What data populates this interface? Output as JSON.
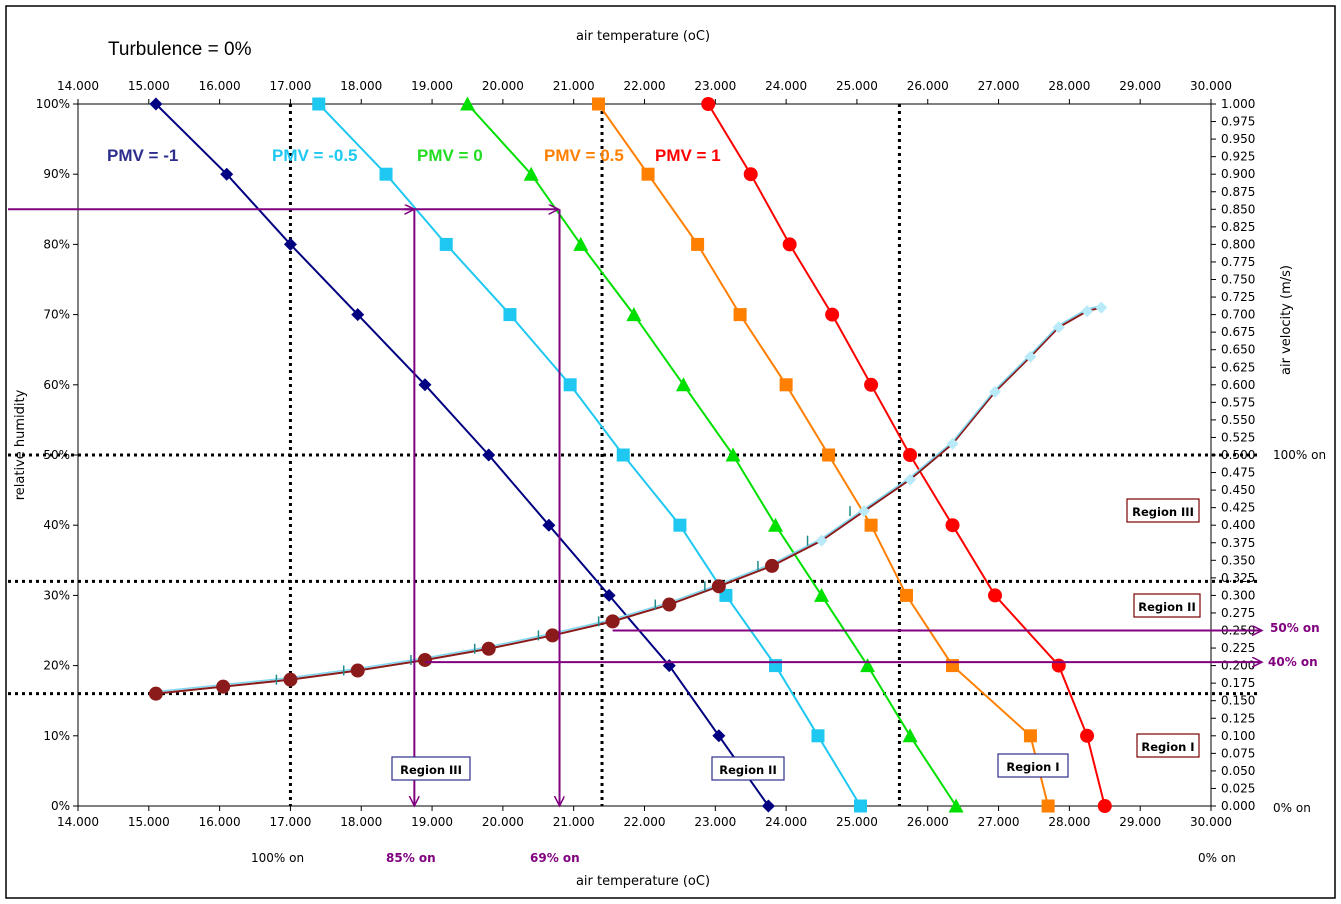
{
  "chart_data": {
    "type": "line",
    "title": "Turbulence = 0%",
    "x_top_label": "air temperature (oC)",
    "x_bottom_label": "air temperature (oC)",
    "y_left_label": "relative humidity",
    "y_right_label": "air velocity (m/s)",
    "xlim": [
      14,
      30
    ],
    "x_ticks": [
      "14.000",
      "15.000",
      "16.000",
      "17.000",
      "18.000",
      "19.000",
      "20.000",
      "21.000",
      "22.000",
      "23.000",
      "24.000",
      "25.000",
      "26.000",
      "27.000",
      "28.000",
      "29.000",
      "30.000"
    ],
    "y_left_ticks": [
      "0%",
      "10%",
      "20%",
      "30%",
      "40%",
      "50%",
      "60%",
      "70%",
      "80%",
      "90%",
      "100%"
    ],
    "y_right_ticks": [
      "0.000",
      "0.025",
      "0.050",
      "0.075",
      "0.100",
      "0.125",
      "0.150",
      "0.175",
      "0.200",
      "0.225",
      "0.250",
      "0.275",
      "0.300",
      "0.325",
      "0.350",
      "0.375",
      "0.400",
      "0.425",
      "0.450",
      "0.475",
      "0.500",
      "0.525",
      "0.550",
      "0.575",
      "0.600",
      "0.625",
      "0.650",
      "0.675",
      "0.700",
      "0.725",
      "0.750",
      "0.775",
      "0.800",
      "0.825",
      "0.850",
      "0.875",
      "0.900",
      "0.925",
      "0.950",
      "0.975",
      "1.000"
    ],
    "pmv_series": [
      {
        "name": "PMV = -1",
        "color": "#000080",
        "marker": "diamond",
        "x": [
          23.75,
          23.05,
          22.35,
          21.5,
          20.65,
          19.8,
          18.9,
          17.95,
          17.0,
          16.1,
          15.1
        ],
        "y": [
          0,
          10,
          20,
          30,
          40,
          50,
          60,
          70,
          80,
          90,
          100
        ]
      },
      {
        "name": "PMV = -0.5",
        "color": "#1EC8F0",
        "marker": "square",
        "x": [
          25.05,
          24.45,
          23.85,
          23.15,
          22.5,
          21.7,
          20.95,
          20.1,
          19.2,
          18.35,
          17.4
        ],
        "y": [
          0,
          10,
          20,
          30,
          40,
          50,
          60,
          70,
          80,
          90,
          100
        ]
      },
      {
        "name": "PMV = 0",
        "color": "#00E000",
        "marker": "triangle",
        "x": [
          26.4,
          25.75,
          25.15,
          24.5,
          23.85,
          23.25,
          22.55,
          21.85,
          21.1,
          20.4,
          19.5
        ],
        "y": [
          0,
          10,
          20,
          30,
          40,
          50,
          60,
          70,
          80,
          90,
          100
        ]
      },
      {
        "name": "PMV = 0.5",
        "color": "#FF7F00",
        "marker": "square",
        "x": [
          27.7,
          27.45,
          26.35,
          25.7,
          25.2,
          24.6,
          24.0,
          23.35,
          22.75,
          22.05,
          21.35
        ],
        "y": [
          0,
          10,
          20,
          30,
          40,
          50,
          60,
          70,
          80,
          90,
          100
        ]
      },
      {
        "name": "PMV = 1",
        "color": "#FF0000",
        "marker": "circle",
        "x": [
          28.5,
          28.25,
          27.85,
          26.95,
          26.35,
          25.75,
          25.2,
          24.65,
          24.05,
          23.5,
          22.9
        ],
        "y": [
          0,
          10,
          20,
          30,
          40,
          50,
          60,
          70,
          80,
          90,
          100
        ]
      }
    ],
    "velocity_curve": {
      "x": [
        15.1,
        16.05,
        17.0,
        17.95,
        18.9,
        19.8,
        20.7,
        21.55,
        22.35,
        23.05,
        23.8,
        24.5,
        25.1,
        25.75,
        26.35,
        26.95,
        27.45,
        27.85,
        28.25,
        28.45
      ],
      "y": [
        0.16,
        0.17,
        0.18,
        0.193,
        0.208,
        0.224,
        0.243,
        0.263,
        0.287,
        0.313,
        0.342,
        0.378,
        0.42,
        0.465,
        0.516,
        0.59,
        0.64,
        0.682,
        0.705,
        0.71
      ]
    },
    "dotted_verticals_x": [
      17.0,
      21.4,
      25.6
    ],
    "dotted_horizontals_y": [
      0.5,
      0.32,
      0.16
    ],
    "purple_arrows": {
      "rh_level": 85,
      "x_targets": [
        18.75,
        20.8
      ],
      "velocities": [
        0.25,
        0.205
      ]
    },
    "annotations": {
      "pmv_labels": [
        "PMV = -1",
        "PMV = -0.5",
        "PMV = 0",
        "PMV = 0.5",
        "PMV = 1"
      ],
      "bottom": [
        "100% on",
        "85% on",
        "69% on",
        "0% on"
      ],
      "right": [
        "100% on",
        "50% on",
        "40% on",
        "0% on"
      ],
      "regions": [
        "Region III",
        "Region II",
        "Region I",
        "Region III",
        "Region II",
        "Region I"
      ]
    }
  }
}
